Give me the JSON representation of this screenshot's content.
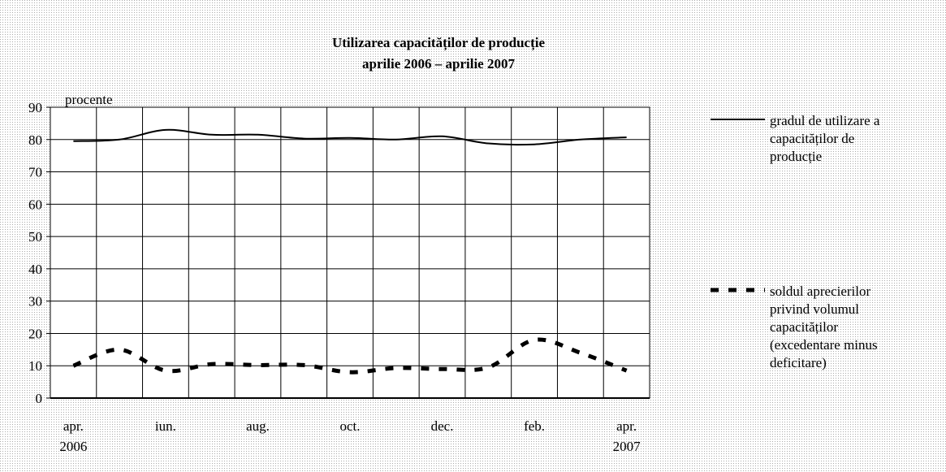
{
  "chart_data": {
    "type": "line",
    "title": "Utilizarea capacităților de producție",
    "subtitle": "aprilie 2006 – aprilie 2007",
    "y_label": "procente",
    "categories": [
      "apr. 2006",
      null,
      "iun.",
      null,
      "aug.",
      null,
      "oct.",
      null,
      "dec.",
      null,
      "feb.",
      null,
      "apr. 2007"
    ],
    "series": [
      {
        "name": "gradul de utilizare a capacităților de producție",
        "color": "#000000",
        "style": "solid",
        "values": [
          79.5,
          80,
          83,
          81.5,
          81.5,
          80.3,
          80.5,
          80,
          81,
          78.8,
          78.5,
          80,
          80.7
        ]
      },
      {
        "name": "soldul aprecierilor privind volumul capacităților (excedentare minus deficitare)",
        "color": "#000000",
        "style": "dashed",
        "values": [
          10,
          15,
          8.5,
          10.5,
          10.2,
          10.2,
          8,
          9.3,
          9,
          9.5,
          18,
          14,
          8.5
        ]
      }
    ],
    "ylim": [
      0,
      90
    ],
    "yticks": [
      0,
      10,
      20,
      30,
      40,
      50,
      60,
      70,
      80,
      90
    ],
    "grid": true,
    "legend": "right"
  }
}
